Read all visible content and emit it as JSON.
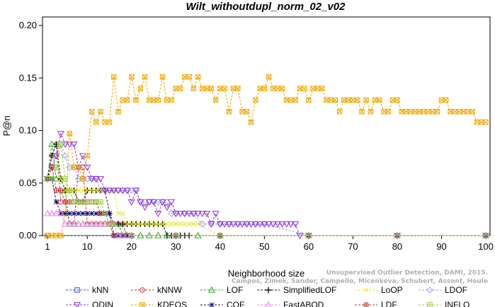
{
  "chart_data": {
    "type": "line",
    "title": "Wilt_withoutdupl_norm_02_v02",
    "xlabel": "Neighborhood size",
    "ylabel": "P@n",
    "xlim": [
      1,
      100
    ],
    "ylim": [
      0,
      0.2
    ],
    "x_ticks": [
      "1",
      "10",
      "20",
      "30",
      "40",
      "50",
      "60",
      "70",
      "80",
      "90",
      "100"
    ],
    "y_ticks": [
      "0.00",
      "0.05",
      "0.10",
      "0.15",
      "0.20"
    ],
    "grid": false,
    "legend_position": "bottom",
    "series": [
      {
        "name": "kNN",
        "color": "#3050d8",
        "marker": "square",
        "x": [
          1,
          100
        ],
        "y": [
          0.0,
          0.0
        ]
      },
      {
        "name": "kNNW",
        "color": "#d03030",
        "marker": "circle",
        "x": [
          1,
          2,
          3,
          4,
          5,
          6,
          7,
          8,
          9,
          10,
          11,
          12,
          13,
          14,
          15,
          16,
          17,
          18,
          19,
          20,
          30,
          40,
          60,
          80,
          100
        ],
        "y": [
          0.054,
          0.076,
          0.087,
          0.032,
          0.032,
          0.011,
          0.011,
          0.065,
          0.065,
          0.011,
          0.011,
          0.011,
          0.011,
          0.011,
          0.011,
          0.011,
          0.011,
          0.011,
          0.0,
          0.0,
          0.0,
          0.0,
          0.0,
          0.0,
          0.0
        ]
      },
      {
        "name": "LOF",
        "color": "#20b020",
        "marker": "triangle",
        "x": [
          1,
          2,
          3,
          4,
          5,
          6,
          7,
          8,
          9,
          10,
          11,
          12,
          13,
          14,
          15,
          16,
          17,
          18,
          19,
          20,
          22,
          24,
          26,
          28,
          30,
          35,
          40,
          60,
          80,
          100
        ],
        "y": [
          0.054,
          0.087,
          0.054,
          0.054,
          0.043,
          0.011,
          0.011,
          0.011,
          0.011,
          0.011,
          0.011,
          0.011,
          0.011,
          0.011,
          0.011,
          0.011,
          0.011,
          0.0,
          0.0,
          0.0,
          0.0,
          0.0,
          0.0,
          0.0,
          0.0,
          0.0,
          0.0,
          0.0,
          0.0,
          0.0
        ]
      },
      {
        "name": "SimplifiedLOF",
        "color": "#111111",
        "marker": "plus",
        "x": [
          1,
          2,
          3,
          4,
          5,
          6,
          7,
          8,
          9,
          10,
          11,
          12,
          13,
          14,
          15,
          16,
          17,
          18,
          19,
          20,
          21,
          22,
          23,
          24,
          25,
          26,
          27,
          28,
          29,
          30,
          31,
          32,
          33,
          40,
          60,
          80,
          100
        ],
        "y": [
          0.054,
          0.076,
          0.087,
          0.054,
          0.043,
          0.043,
          0.043,
          0.032,
          0.032,
          0.043,
          0.043,
          0.043,
          0.043,
          0.043,
          0.021,
          0.011,
          0.011,
          0.011,
          0.011,
          0.011,
          0.011,
          0.011,
          0.011,
          0.011,
          0.011,
          0.011,
          0.011,
          0.0,
          0.0,
          0.0,
          0.0,
          0.0,
          0.0,
          0.0,
          0.0,
          0.0,
          0.0
        ]
      },
      {
        "name": "LoOP",
        "color": "#e8e820",
        "marker": "x",
        "x": [
          1,
          2,
          3,
          4,
          5,
          6,
          7,
          8,
          9,
          10,
          11,
          12,
          13,
          14,
          15,
          16,
          17,
          18,
          19,
          20,
          21,
          22,
          23,
          24,
          25,
          26,
          27,
          28,
          29,
          30,
          31,
          32,
          33,
          34,
          35,
          40,
          60,
          80,
          100
        ],
        "y": [
          0.054,
          0.065,
          0.076,
          0.054,
          0.043,
          0.043,
          0.043,
          0.043,
          0.043,
          0.043,
          0.043,
          0.043,
          0.043,
          0.043,
          0.043,
          0.043,
          0.021,
          0.021,
          0.011,
          0.011,
          0.011,
          0.011,
          0.011,
          0.011,
          0.011,
          0.011,
          0.011,
          0.011,
          0.011,
          0.011,
          0.011,
          0.011,
          0.011,
          0.011,
          0.011,
          0.0,
          0.0,
          0.0,
          0.0
        ]
      },
      {
        "name": "LDOF",
        "color": "#a0a0e0",
        "marker": "diamond",
        "x": [
          1,
          2,
          3,
          4,
          5,
          6,
          7,
          8,
          9,
          10,
          11,
          12,
          13,
          14,
          15,
          16,
          17,
          18,
          19,
          20,
          21,
          22,
          23,
          24,
          25,
          26,
          27,
          28,
          29,
          30,
          32,
          34,
          36,
          38,
          40,
          42,
          44,
          46,
          48,
          50,
          60,
          80,
          100
        ],
        "y": [
          0.054,
          0.065,
          0.076,
          0.087,
          0.076,
          0.065,
          0.065,
          0.054,
          0.054,
          0.054,
          0.054,
          0.054,
          0.043,
          0.043,
          0.043,
          0.043,
          0.043,
          0.043,
          0.043,
          0.043,
          0.043,
          0.032,
          0.032,
          0.032,
          0.032,
          0.032,
          0.032,
          0.032,
          0.021,
          0.021,
          0.021,
          0.021,
          0.011,
          0.011,
          0.011,
          0.011,
          0.011,
          0.011,
          0.011,
          0.011,
          0.0,
          0.0,
          0.0
        ]
      },
      {
        "name": "ODIN",
        "color": "#9030e0",
        "marker": "triangle-down",
        "x": [
          1,
          2,
          3,
          4,
          5,
          6,
          7,
          8,
          9,
          10,
          11,
          12,
          13,
          14,
          15,
          16,
          17,
          18,
          19,
          20,
          21,
          22,
          23,
          24,
          25,
          26,
          27,
          28,
          29,
          30,
          31,
          32,
          33,
          34,
          35,
          36,
          37,
          38,
          39,
          40,
          41,
          42,
          43,
          44,
          45,
          46,
          47,
          48,
          49,
          50,
          51,
          52,
          53,
          54,
          55,
          56,
          57,
          58,
          60,
          80,
          100
        ],
        "y": [
          0.054,
          0.065,
          0.076,
          0.097,
          0.087,
          0.087,
          0.087,
          0.065,
          0.076,
          0.065,
          0.054,
          0.054,
          0.054,
          0.043,
          0.043,
          0.043,
          0.043,
          0.043,
          0.043,
          0.032,
          0.043,
          0.032,
          0.027,
          0.032,
          0.032,
          0.021,
          0.032,
          0.027,
          0.032,
          0.021,
          0.021,
          0.021,
          0.021,
          0.021,
          0.021,
          0.021,
          0.021,
          0.011,
          0.021,
          0.011,
          0.011,
          0.011,
          0.011,
          0.011,
          0.011,
          0.011,
          0.011,
          0.011,
          0.011,
          0.011,
          0.011,
          0.011,
          0.011,
          0.011,
          0.011,
          0.011,
          0.011,
          0.0,
          0.0,
          0.0,
          0.0
        ]
      },
      {
        "name": "KDEOS",
        "color": "#f0a800",
        "marker": "square-x",
        "x": [
          1,
          2,
          3,
          4,
          5,
          6,
          7,
          8,
          9,
          10,
          11,
          12,
          13,
          14,
          15,
          16,
          17,
          18,
          19,
          20,
          21,
          22,
          23,
          24,
          25,
          26,
          27,
          28,
          29,
          30,
          31,
          32,
          33,
          34,
          35,
          36,
          37,
          38,
          39,
          40,
          41,
          42,
          43,
          44,
          45,
          46,
          47,
          48,
          49,
          50,
          51,
          52,
          53,
          54,
          55,
          56,
          57,
          58,
          59,
          60,
          61,
          62,
          63,
          64,
          65,
          66,
          67,
          68,
          69,
          70,
          71,
          72,
          73,
          74,
          75,
          76,
          77,
          78,
          79,
          80,
          81,
          82,
          83,
          84,
          85,
          86,
          87,
          88,
          89,
          90,
          91,
          92,
          93,
          94,
          95,
          96,
          97,
          98,
          99,
          100
        ],
        "y": [
          0.0,
          0.0,
          0.0,
          0.0,
          0.021,
          0.097,
          0.065,
          0.065,
          0.054,
          0.076,
          0.118,
          0.108,
          0.118,
          0.108,
          0.108,
          0.151,
          0.118,
          0.129,
          0.129,
          0.151,
          0.129,
          0.14,
          0.151,
          0.129,
          0.129,
          0.129,
          0.151,
          0.129,
          0.129,
          0.14,
          0.14,
          0.151,
          0.151,
          0.14,
          0.151,
          0.14,
          0.14,
          0.14,
          0.129,
          0.14,
          0.14,
          0.118,
          0.14,
          0.14,
          0.118,
          0.118,
          0.108,
          0.129,
          0.14,
          0.14,
          0.151,
          0.14,
          0.14,
          0.14,
          0.129,
          0.129,
          0.129,
          0.14,
          0.14,
          0.129,
          0.14,
          0.14,
          0.14,
          0.129,
          0.129,
          0.129,
          0.118,
          0.129,
          0.129,
          0.129,
          0.129,
          0.118,
          0.129,
          0.118,
          0.129,
          0.129,
          0.118,
          0.118,
          0.129,
          0.129,
          0.118,
          0.118,
          0.118,
          0.118,
          0.118,
          0.118,
          0.118,
          0.118,
          0.118,
          0.129,
          0.129,
          0.118,
          0.118,
          0.118,
          0.118,
          0.118,
          0.118,
          0.108,
          0.108,
          0.108
        ]
      },
      {
        "name": "COF",
        "color": "#101070",
        "marker": "asterisk",
        "x": [
          1,
          2,
          3,
          4,
          5,
          6,
          7,
          8,
          9,
          10,
          11,
          12,
          13,
          14,
          15,
          16,
          17,
          18,
          19,
          20,
          30,
          40,
          60,
          80,
          100
        ],
        "y": [
          0.054,
          0.054,
          0.032,
          0.021,
          0.021,
          0.021,
          0.021,
          0.021,
          0.021,
          0.021,
          0.021,
          0.021,
          0.021,
          0.021,
          0.021,
          0.0,
          0.0,
          0.0,
          0.0,
          0.0,
          0.0,
          0.0,
          0.0,
          0.0,
          0.0
        ]
      },
      {
        "name": "FastABOD",
        "color": "#f080f0",
        "marker": "tri",
        "x": [
          1,
          2,
          3,
          4,
          5,
          6,
          7,
          8,
          9,
          10,
          11,
          12,
          13,
          14,
          15,
          16,
          17,
          18,
          19,
          20,
          30,
          40,
          60,
          80,
          100
        ],
        "y": [
          0.021,
          0.021,
          0.021,
          0.021,
          0.011,
          0.011,
          0.011,
          0.011,
          0.011,
          0.011,
          0.011,
          0.011,
          0.011,
          0.011,
          0.011,
          0.011,
          0.0,
          0.0,
          0.0,
          0.0,
          0.0,
          0.0,
          0.0,
          0.0,
          0.0
        ]
      },
      {
        "name": "LDF",
        "color": "#c03030",
        "marker": "circle-plus",
        "x": [
          1,
          2,
          3,
          4,
          5,
          6,
          7,
          8,
          9,
          10,
          11,
          12,
          13,
          14,
          15,
          16,
          20,
          30,
          40,
          60,
          80,
          100
        ],
        "y": [
          0.054,
          0.065,
          0.043,
          0.043,
          0.032,
          0.032,
          0.032,
          0.032,
          0.032,
          0.032,
          0.032,
          0.032,
          0.021,
          0.021,
          0.011,
          0.0,
          0.0,
          0.0,
          0.0,
          0.0,
          0.0,
          0.0
        ]
      },
      {
        "name": "INFLO",
        "color": "#90d040",
        "marker": "square-cross",
        "x": [
          1,
          2,
          3,
          4,
          5,
          6,
          7,
          8,
          9,
          10,
          11,
          12,
          13,
          14,
          15,
          16,
          20,
          30,
          40,
          60,
          80,
          100
        ],
        "y": [
          0.054,
          0.054,
          0.065,
          0.087,
          0.054,
          0.043,
          0.032,
          0.032,
          0.032,
          0.032,
          0.032,
          0.032,
          0.032,
          0.021,
          0.011,
          0.011,
          0.0,
          0.0,
          0.0,
          0.0,
          0.0,
          0.0
        ]
      }
    ],
    "legend": [
      {
        "name": "kNN",
        "row": 0,
        "col": 0
      },
      {
        "name": "kNNW",
        "row": 0,
        "col": 1
      },
      {
        "name": "LOF",
        "row": 0,
        "col": 2
      },
      {
        "name": "SimplifiedLOF",
        "row": 0,
        "col": 3
      },
      {
        "name": "LoOP",
        "row": 0,
        "col": 4
      },
      {
        "name": "LDOF",
        "row": 0,
        "col": 5
      },
      {
        "name": "ODIN",
        "row": 1,
        "col": 0
      },
      {
        "name": "KDEOS",
        "row": 1,
        "col": 1
      },
      {
        "name": "COF",
        "row": 1,
        "col": 2
      },
      {
        "name": "FastABOD",
        "row": 1,
        "col": 3
      },
      {
        "name": "LDF",
        "row": 1,
        "col": 4
      },
      {
        "name": "INFLO",
        "row": 1,
        "col": 5
      }
    ]
  },
  "watermark": {
    "line1": "Unsupervised Outlier Detection, DAMI, 2015.",
    "line2": "Campos, Zimek, Sander, Campello, Micenkova, Schubert, Assent, Houle"
  }
}
